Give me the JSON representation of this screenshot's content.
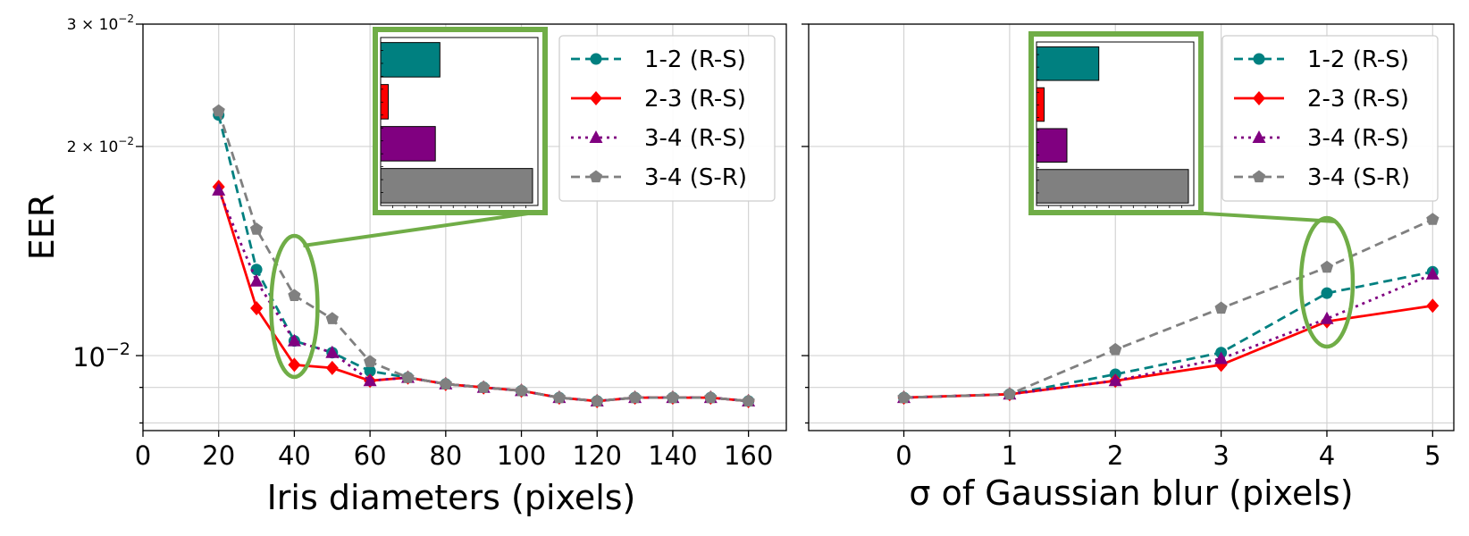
{
  "colors": {
    "teal": "#008080",
    "red": "#ff0000",
    "purple": "#800080",
    "gray": "#808080",
    "highlight": "#70ad47"
  },
  "chart_data": [
    {
      "type": "line",
      "xlabel": "Iris diameters (pixels)",
      "ylabel": "EER",
      "xlim": [
        0,
        170
      ],
      "ylim": [
        0.0078,
        0.03
      ],
      "yscale": "log",
      "grid": true,
      "legend": "top-right",
      "x_ticks": [
        "0",
        "20",
        "40",
        "60",
        "80",
        "100",
        "120",
        "140",
        "160"
      ],
      "y_tick_labels": {
        "top": "3 × 10",
        "top_exp": "−2",
        "mid": "2 × 10",
        "mid_exp": "−2",
        "low": "10",
        "low_exp": "−2"
      },
      "x": [
        20,
        30,
        40,
        50,
        60,
        70,
        80,
        90,
        100,
        110,
        120,
        130,
        140,
        150,
        160
      ],
      "series": [
        {
          "name": "1-2 (R-S)",
          "color": "#008080",
          "dash": "10,6",
          "marker": "circle",
          "values": [
            0.0222,
            0.0133,
            0.0105,
            0.0101,
            0.0095,
            0.0093,
            0.0091,
            0.009,
            0.0089,
            0.0087,
            0.0086,
            0.0087,
            0.0087,
            0.0087,
            0.0086
          ]
        },
        {
          "name": "2-3 (R-S)",
          "color": "#ff0000",
          "dash": "",
          "marker": "diamond",
          "values": [
            0.0175,
            0.0117,
            0.0097,
            0.0096,
            0.0092,
            0.0093,
            0.0091,
            0.009,
            0.0089,
            0.0087,
            0.0086,
            0.0087,
            0.0087,
            0.0087,
            0.0086
          ]
        },
        {
          "name": "3-4 (R-S)",
          "color": "#800080",
          "dash": "3,5",
          "marker": "triangle",
          "values": [
            0.0173,
            0.0128,
            0.0105,
            0.0101,
            0.0092,
            0.0093,
            0.0091,
            0.009,
            0.0089,
            0.0087,
            0.0086,
            0.0087,
            0.0087,
            0.0087,
            0.0086
          ]
        },
        {
          "name": "3-4 (S-R)",
          "color": "#808080",
          "dash": "10,6",
          "marker": "pentagon",
          "values": [
            0.0225,
            0.0152,
            0.0122,
            0.0113,
            0.0098,
            0.0093,
            0.0091,
            0.009,
            0.0089,
            0.0087,
            0.0086,
            0.0087,
            0.0087,
            0.0087,
            0.0086
          ]
        }
      ],
      "highlight_x": 40,
      "inset": {
        "type": "bar",
        "orientation": "horizontal",
        "values": [
          0.39,
          0.05,
          0.36,
          1.0
        ]
      }
    },
    {
      "type": "line",
      "xlabel": "σ of Gaussian blur (pixels)",
      "ylabel": "",
      "xlim": [
        -0.9,
        5.2
      ],
      "ylim": [
        0.0078,
        0.03
      ],
      "yscale": "log",
      "grid": true,
      "legend": "top-right",
      "x_ticks": [
        "0",
        "1",
        "2",
        "3",
        "4",
        "5"
      ],
      "x": [
        0,
        1,
        2,
        3,
        4,
        5
      ],
      "series": [
        {
          "name": "1-2 (R-S)",
          "color": "#008080",
          "dash": "10,6",
          "marker": "circle",
          "values": [
            0.0087,
            0.0088,
            0.0094,
            0.0101,
            0.0123,
            0.0132
          ]
        },
        {
          "name": "2-3 (R-S)",
          "color": "#ff0000",
          "dash": "",
          "marker": "diamond",
          "values": [
            0.0087,
            0.0088,
            0.0092,
            0.0097,
            0.0112,
            0.0118
          ]
        },
        {
          "name": "3-4 (R-S)",
          "color": "#800080",
          "dash": "3,5",
          "marker": "triangle",
          "values": [
            0.0087,
            0.0088,
            0.0092,
            0.0099,
            0.0113,
            0.0131
          ]
        },
        {
          "name": "3-4 (S-R)",
          "color": "#808080",
          "dash": "10,6",
          "marker": "pentagon",
          "values": [
            0.0087,
            0.0088,
            0.0102,
            0.0117,
            0.0134,
            0.0157
          ]
        }
      ],
      "highlight_x": 4,
      "inset": {
        "type": "bar",
        "orientation": "horizontal",
        "values": [
          0.41,
          0.05,
          0.2,
          1.0
        ]
      }
    }
  ]
}
